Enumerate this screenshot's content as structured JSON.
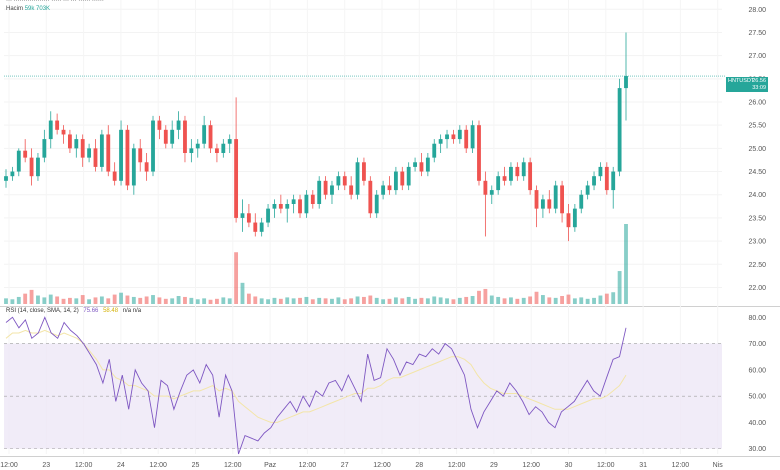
{
  "header": {
    "top_line": "··· ·················· ····· ··· ··· ······ ······",
    "volume_label": "Hacim",
    "volume_value": "59k 703K"
  },
  "price_badge": {
    "symbol": "HNTUSDT",
    "price": "26.56",
    "countdown": "33:09"
  },
  "rsi": {
    "title": "RSI (14, close, SMA, 14, 2)",
    "value": "75.66",
    "sma_value": "58.48",
    "extra": "n/a n/a"
  },
  "colors": {
    "up": "#26a69a",
    "down": "#ef5350",
    "rsi_line": "#7e57c2",
    "rsi_ma": "#f3e5a8",
    "rsi_band": "#ede7f6"
  },
  "chart_data": [
    {
      "type": "candlestick",
      "y_ticks": [
        "28.00",
        "27.50",
        "27.00",
        "26.50",
        "26.00",
        "25.50",
        "25.00",
        "24.50",
        "24.00",
        "23.50",
        "23.00",
        "22.50",
        "22.00"
      ],
      "x_ticks": [
        "12:00",
        "23",
        "12:00",
        "24",
        "12:00",
        "25",
        "12:00",
        "Paz",
        "12:00",
        "27",
        "12:00",
        "28",
        "12:00",
        "29",
        "12:00",
        "30",
        "12:00",
        "31",
        "12:00",
        "Nis"
      ],
      "ylim": [
        21.6,
        28.2
      ],
      "last_price": 26.56,
      "points": [
        {
          "o": 24.3,
          "h": 24.55,
          "l": 24.15,
          "c": 24.4,
          "v": 1.2
        },
        {
          "o": 24.4,
          "h": 24.6,
          "l": 24.3,
          "c": 24.5,
          "v": 1.0
        },
        {
          "o": 24.5,
          "h": 25.0,
          "l": 24.4,
          "c": 24.95,
          "v": 1.5
        },
        {
          "o": 24.95,
          "h": 25.2,
          "l": 24.7,
          "c": 24.8,
          "v": 2.2
        },
        {
          "o": 24.8,
          "h": 25.0,
          "l": 24.2,
          "c": 24.4,
          "v": 3.0
        },
        {
          "o": 24.4,
          "h": 24.9,
          "l": 24.3,
          "c": 24.8,
          "v": 1.8
        },
        {
          "o": 24.8,
          "h": 25.4,
          "l": 24.7,
          "c": 25.2,
          "v": 1.4
        },
        {
          "o": 25.2,
          "h": 25.8,
          "l": 25.0,
          "c": 25.6,
          "v": 2.0
        },
        {
          "o": 25.6,
          "h": 25.75,
          "l": 25.3,
          "c": 25.4,
          "v": 1.6
        },
        {
          "o": 25.4,
          "h": 25.5,
          "l": 25.1,
          "c": 25.3,
          "v": 1.1
        },
        {
          "o": 25.3,
          "h": 25.4,
          "l": 24.9,
          "c": 25.0,
          "v": 1.3
        },
        {
          "o": 25.0,
          "h": 25.3,
          "l": 24.8,
          "c": 25.2,
          "v": 1.2
        },
        {
          "o": 25.2,
          "h": 25.3,
          "l": 24.6,
          "c": 24.8,
          "v": 1.9
        },
        {
          "o": 24.8,
          "h": 25.1,
          "l": 24.7,
          "c": 25.0,
          "v": 1.0
        },
        {
          "o": 25.0,
          "h": 25.2,
          "l": 24.5,
          "c": 24.6,
          "v": 1.4
        },
        {
          "o": 24.6,
          "h": 25.4,
          "l": 24.5,
          "c": 25.3,
          "v": 1.6
        },
        {
          "o": 25.3,
          "h": 25.5,
          "l": 24.4,
          "c": 24.5,
          "v": 1.2
        },
        {
          "o": 24.5,
          "h": 24.7,
          "l": 24.2,
          "c": 24.3,
          "v": 2.0
        },
        {
          "o": 24.3,
          "h": 25.6,
          "l": 24.2,
          "c": 25.4,
          "v": 2.4
        },
        {
          "o": 25.4,
          "h": 25.5,
          "l": 24.1,
          "c": 24.2,
          "v": 1.8
        },
        {
          "o": 24.2,
          "h": 25.1,
          "l": 24.0,
          "c": 25.0,
          "v": 1.5
        },
        {
          "o": 25.0,
          "h": 25.2,
          "l": 24.5,
          "c": 24.7,
          "v": 1.3
        },
        {
          "o": 24.7,
          "h": 24.9,
          "l": 24.3,
          "c": 24.5,
          "v": 1.6
        },
        {
          "o": 24.5,
          "h": 25.7,
          "l": 24.4,
          "c": 25.6,
          "v": 1.9
        },
        {
          "o": 25.6,
          "h": 25.7,
          "l": 25.2,
          "c": 25.4,
          "v": 1.4
        },
        {
          "o": 25.4,
          "h": 25.5,
          "l": 25.0,
          "c": 25.1,
          "v": 1.1
        },
        {
          "o": 25.1,
          "h": 25.6,
          "l": 25.0,
          "c": 25.4,
          "v": 1.2
        },
        {
          "o": 25.4,
          "h": 25.8,
          "l": 25.2,
          "c": 25.6,
          "v": 1.7
        },
        {
          "o": 25.6,
          "h": 25.7,
          "l": 24.7,
          "c": 24.9,
          "v": 1.5
        },
        {
          "o": 24.9,
          "h": 25.2,
          "l": 24.7,
          "c": 25.0,
          "v": 1.3
        },
        {
          "o": 25.0,
          "h": 25.2,
          "l": 24.8,
          "c": 25.1,
          "v": 1.0
        },
        {
          "o": 25.1,
          "h": 25.7,
          "l": 25.0,
          "c": 25.5,
          "v": 1.2
        },
        {
          "o": 25.5,
          "h": 25.6,
          "l": 24.9,
          "c": 25.0,
          "v": 0.9
        },
        {
          "o": 25.0,
          "h": 25.1,
          "l": 24.7,
          "c": 24.9,
          "v": 1.1
        },
        {
          "o": 24.9,
          "h": 25.2,
          "l": 24.8,
          "c": 25.1,
          "v": 1.4
        },
        {
          "o": 25.1,
          "h": 25.3,
          "l": 24.9,
          "c": 25.2,
          "v": 1.2
        },
        {
          "o": 25.2,
          "h": 26.1,
          "l": 23.4,
          "c": 23.5,
          "v": 11.0
        },
        {
          "o": 23.5,
          "h": 23.9,
          "l": 23.2,
          "c": 23.6,
          "v": 4.5
        },
        {
          "o": 23.6,
          "h": 23.8,
          "l": 23.3,
          "c": 23.4,
          "v": 2.2
        },
        {
          "o": 23.4,
          "h": 23.6,
          "l": 23.1,
          "c": 23.2,
          "v": 1.6
        },
        {
          "o": 23.2,
          "h": 23.5,
          "l": 23.1,
          "c": 23.4,
          "v": 1.2
        },
        {
          "o": 23.4,
          "h": 23.8,
          "l": 23.3,
          "c": 23.7,
          "v": 1.0
        },
        {
          "o": 23.7,
          "h": 23.9,
          "l": 23.5,
          "c": 23.8,
          "v": 1.3
        },
        {
          "o": 23.8,
          "h": 24.0,
          "l": 23.6,
          "c": 23.7,
          "v": 1.1
        },
        {
          "o": 23.7,
          "h": 23.9,
          "l": 23.4,
          "c": 23.8,
          "v": 1.4
        },
        {
          "o": 23.8,
          "h": 24.0,
          "l": 23.6,
          "c": 23.9,
          "v": 1.2
        },
        {
          "o": 23.9,
          "h": 24.0,
          "l": 23.5,
          "c": 23.6,
          "v": 1.3
        },
        {
          "o": 23.6,
          "h": 24.1,
          "l": 23.5,
          "c": 24.0,
          "v": 1.5
        },
        {
          "o": 24.0,
          "h": 24.1,
          "l": 23.7,
          "c": 23.8,
          "v": 1.0
        },
        {
          "o": 23.8,
          "h": 24.4,
          "l": 23.7,
          "c": 24.3,
          "v": 1.3
        },
        {
          "o": 24.3,
          "h": 24.4,
          "l": 23.9,
          "c": 24.0,
          "v": 1.2
        },
        {
          "o": 24.0,
          "h": 24.3,
          "l": 23.8,
          "c": 24.2,
          "v": 1.1
        },
        {
          "o": 24.2,
          "h": 24.5,
          "l": 24.1,
          "c": 24.4,
          "v": 1.4
        },
        {
          "o": 24.4,
          "h": 24.5,
          "l": 24.1,
          "c": 24.2,
          "v": 1.0
        },
        {
          "o": 24.2,
          "h": 24.4,
          "l": 23.9,
          "c": 24.0,
          "v": 1.2
        },
        {
          "o": 24.0,
          "h": 24.8,
          "l": 23.9,
          "c": 24.7,
          "v": 1.6
        },
        {
          "o": 24.7,
          "h": 24.8,
          "l": 24.2,
          "c": 24.3,
          "v": 1.5
        },
        {
          "o": 24.3,
          "h": 24.4,
          "l": 23.5,
          "c": 23.6,
          "v": 1.8
        },
        {
          "o": 23.6,
          "h": 24.1,
          "l": 23.5,
          "c": 24.0,
          "v": 1.3
        },
        {
          "o": 24.0,
          "h": 24.3,
          "l": 23.9,
          "c": 24.2,
          "v": 1.0
        },
        {
          "o": 24.2,
          "h": 24.4,
          "l": 24.0,
          "c": 24.1,
          "v": 1.1
        },
        {
          "o": 24.1,
          "h": 24.6,
          "l": 24.0,
          "c": 24.5,
          "v": 1.4
        },
        {
          "o": 24.5,
          "h": 24.6,
          "l": 24.1,
          "c": 24.2,
          "v": 1.2
        },
        {
          "o": 24.2,
          "h": 24.7,
          "l": 24.1,
          "c": 24.6,
          "v": 1.5
        },
        {
          "o": 24.6,
          "h": 24.8,
          "l": 24.5,
          "c": 24.7,
          "v": 1.1
        },
        {
          "o": 24.7,
          "h": 24.9,
          "l": 24.4,
          "c": 24.5,
          "v": 1.3
        },
        {
          "o": 24.5,
          "h": 24.9,
          "l": 24.4,
          "c": 24.8,
          "v": 1.2
        },
        {
          "o": 24.8,
          "h": 25.2,
          "l": 24.7,
          "c": 25.1,
          "v": 1.6
        },
        {
          "o": 25.1,
          "h": 25.3,
          "l": 24.9,
          "c": 25.2,
          "v": 1.4
        },
        {
          "o": 25.2,
          "h": 25.4,
          "l": 25.0,
          "c": 25.3,
          "v": 1.2
        },
        {
          "o": 25.3,
          "h": 25.4,
          "l": 25.1,
          "c": 25.2,
          "v": 1.0
        },
        {
          "o": 25.2,
          "h": 25.5,
          "l": 25.1,
          "c": 25.4,
          "v": 1.3
        },
        {
          "o": 25.4,
          "h": 25.5,
          "l": 24.9,
          "c": 25.0,
          "v": 1.5
        },
        {
          "o": 25.0,
          "h": 25.6,
          "l": 24.9,
          "c": 25.5,
          "v": 1.7
        },
        {
          "o": 25.5,
          "h": 25.6,
          "l": 24.2,
          "c": 24.3,
          "v": 2.8
        },
        {
          "o": 24.3,
          "h": 24.5,
          "l": 23.1,
          "c": 24.0,
          "v": 3.2
        },
        {
          "o": 24.0,
          "h": 24.2,
          "l": 23.8,
          "c": 24.1,
          "v": 1.8
        },
        {
          "o": 24.1,
          "h": 24.5,
          "l": 24.0,
          "c": 24.4,
          "v": 1.5
        },
        {
          "o": 24.4,
          "h": 24.6,
          "l": 24.2,
          "c": 24.3,
          "v": 1.2
        },
        {
          "o": 24.3,
          "h": 24.7,
          "l": 24.2,
          "c": 24.6,
          "v": 1.4
        },
        {
          "o": 24.6,
          "h": 24.7,
          "l": 24.3,
          "c": 24.4,
          "v": 1.1
        },
        {
          "o": 24.4,
          "h": 24.8,
          "l": 24.3,
          "c": 24.7,
          "v": 1.3
        },
        {
          "o": 24.7,
          "h": 24.8,
          "l": 24.0,
          "c": 24.1,
          "v": 1.6
        },
        {
          "o": 24.1,
          "h": 24.2,
          "l": 23.3,
          "c": 23.7,
          "v": 2.6
        },
        {
          "o": 23.7,
          "h": 24.0,
          "l": 23.5,
          "c": 23.9,
          "v": 1.9
        },
        {
          "o": 23.9,
          "h": 24.1,
          "l": 23.6,
          "c": 23.7,
          "v": 1.4
        },
        {
          "o": 23.7,
          "h": 24.3,
          "l": 23.6,
          "c": 24.2,
          "v": 1.3
        },
        {
          "o": 24.2,
          "h": 24.3,
          "l": 23.4,
          "c": 23.6,
          "v": 1.7
        },
        {
          "o": 23.6,
          "h": 23.8,
          "l": 23.0,
          "c": 23.3,
          "v": 2.0
        },
        {
          "o": 23.3,
          "h": 23.8,
          "l": 23.2,
          "c": 23.7,
          "v": 1.2
        },
        {
          "o": 23.7,
          "h": 24.1,
          "l": 23.6,
          "c": 24.0,
          "v": 1.4
        },
        {
          "o": 24.0,
          "h": 24.3,
          "l": 23.9,
          "c": 24.2,
          "v": 1.1
        },
        {
          "o": 24.2,
          "h": 24.5,
          "l": 24.1,
          "c": 24.4,
          "v": 1.3
        },
        {
          "o": 24.4,
          "h": 24.7,
          "l": 24.3,
          "c": 24.6,
          "v": 1.8
        },
        {
          "o": 24.6,
          "h": 24.7,
          "l": 24.0,
          "c": 24.1,
          "v": 2.2
        },
        {
          "o": 24.1,
          "h": 24.6,
          "l": 23.7,
          "c": 24.5,
          "v": 2.5
        },
        {
          "o": 24.5,
          "h": 26.5,
          "l": 24.4,
          "c": 26.3,
          "v": 7.0
        },
        {
          "o": 26.3,
          "h": 27.5,
          "l": 25.6,
          "c": 26.56,
          "v": 17.0
        }
      ]
    },
    {
      "type": "line",
      "title": "RSI (14, close, SMA, 14, 2)",
      "y_ticks": [
        "80.00",
        "70.00",
        "60.00",
        "50.00",
        "40.00",
        "30.00"
      ],
      "ylim": [
        28,
        82
      ],
      "levels": [
        70,
        50,
        30
      ],
      "series": [
        {
          "values": [
            78,
            80,
            76,
            79,
            72,
            74,
            80,
            74,
            72,
            78,
            75,
            73,
            70,
            66,
            62,
            55,
            64,
            48,
            58,
            45,
            60,
            55,
            52,
            38,
            56,
            54,
            45,
            52,
            58,
            60,
            55,
            62,
            58,
            42,
            58,
            52,
            28,
            35,
            34,
            33,
            36,
            38,
            42,
            45,
            48,
            44,
            50,
            46,
            52,
            50,
            55,
            56,
            52,
            58,
            53,
            48,
            66,
            56,
            57,
            68,
            64,
            58,
            63,
            62,
            66,
            65,
            68,
            66,
            70,
            68,
            63,
            58,
            45,
            38,
            44,
            48,
            52,
            50,
            55,
            52,
            48,
            43,
            46,
            44,
            40,
            38,
            44,
            46,
            48,
            52,
            56,
            52,
            50,
            57,
            64,
            65,
            76
          ]
        },
        {
          "values": [
            72,
            74,
            74,
            75,
            74,
            74,
            75,
            74,
            73,
            74,
            73,
            72,
            70,
            67,
            64,
            60,
            60,
            57,
            56,
            54,
            54,
            53,
            52,
            50,
            50,
            50,
            49,
            50,
            51,
            52,
            52,
            53,
            54,
            52,
            53,
            52,
            48,
            46,
            44,
            42,
            41,
            40,
            40,
            41,
            42,
            43,
            44,
            44,
            45,
            46,
            47,
            48,
            49,
            50,
            51,
            51,
            53,
            53,
            54,
            56,
            57,
            57,
            58,
            59,
            60,
            61,
            62,
            63,
            64,
            65,
            65,
            64,
            62,
            58,
            55,
            53,
            52,
            51,
            51,
            51,
            50,
            49,
            48,
            47,
            46,
            45,
            45,
            45,
            46,
            47,
            48,
            49,
            49,
            50,
            52,
            54,
            58
          ]
        }
      ]
    }
  ]
}
